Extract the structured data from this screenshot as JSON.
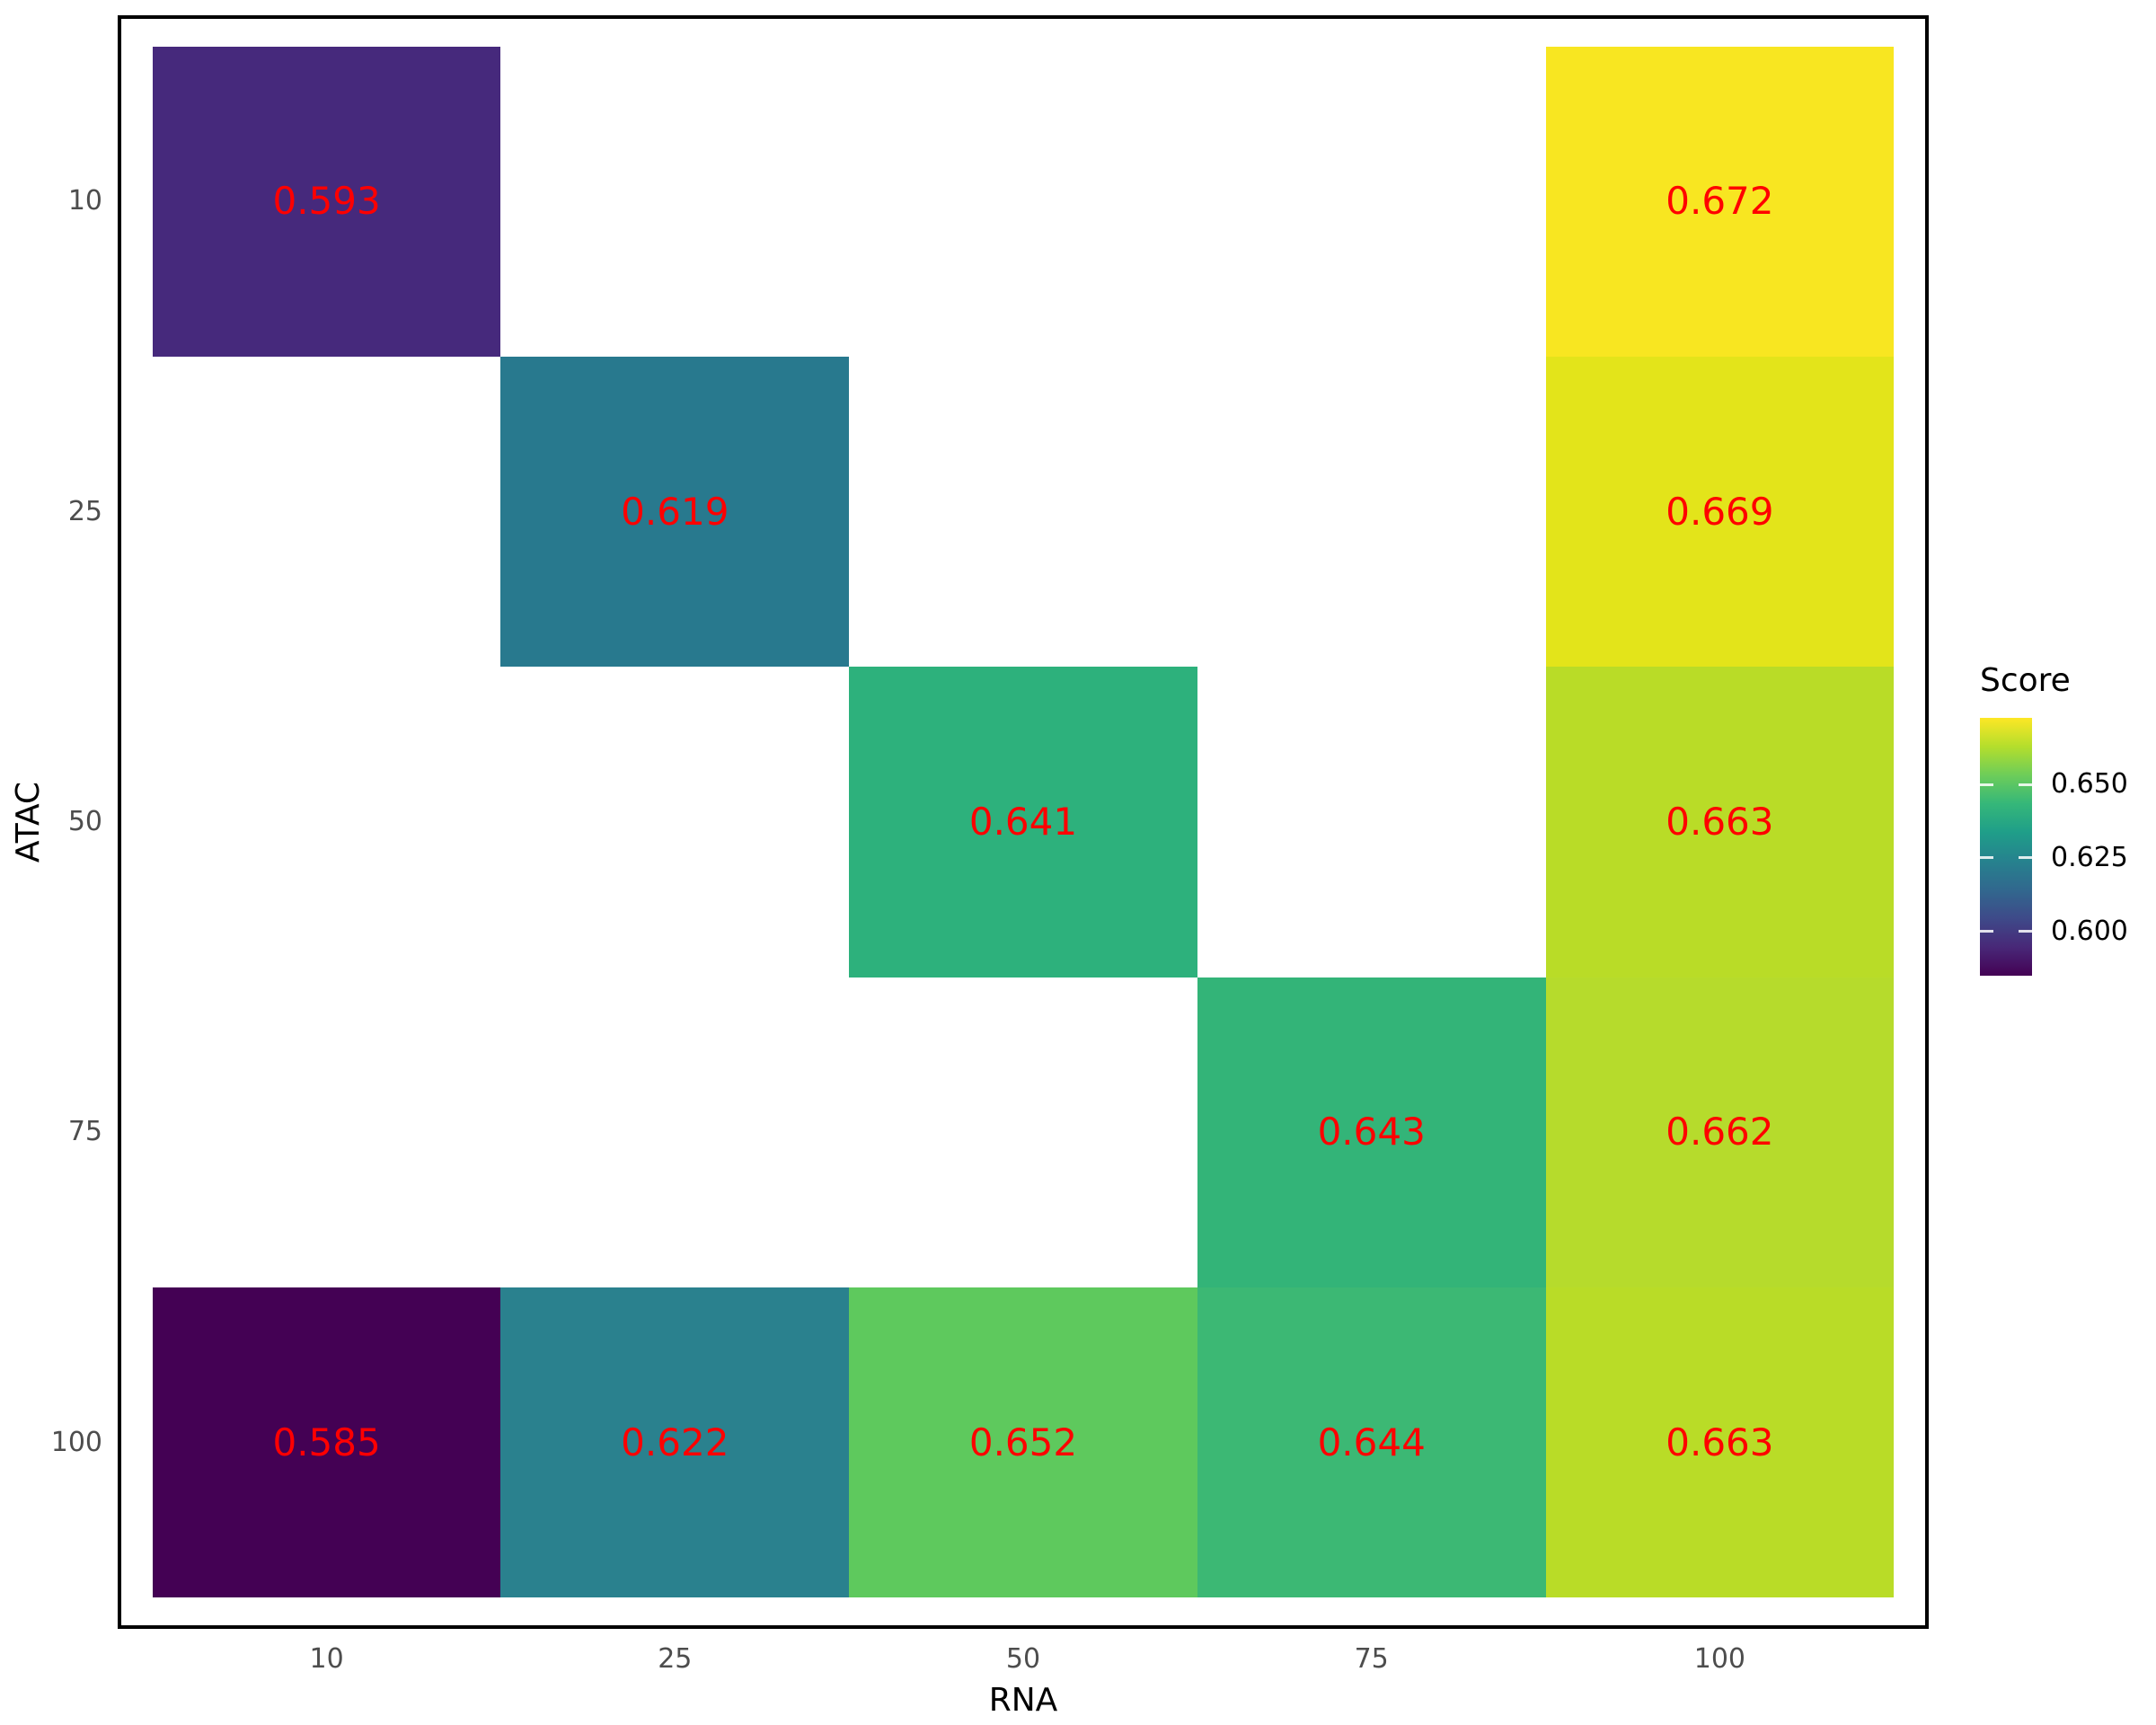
{
  "chart_data": {
    "type": "heatmap",
    "xlabel": "RNA",
    "ylabel": "ATAC",
    "x_categories": [
      "10",
      "25",
      "50",
      "75",
      "100"
    ],
    "y_categories": [
      "10",
      "25",
      "50",
      "75",
      "100"
    ],
    "value_label_color": "#FF0000",
    "axis_tick_color": "#4D4D4D",
    "axis_title_color": "#000000",
    "panel_border_color": "#000000",
    "background_color": "#FFFFFF",
    "cells": [
      {
        "x": "10",
        "y": "10",
        "value": 0.593,
        "label": "0.593",
        "color": "#46297C"
      },
      {
        "x": "100",
        "y": "10",
        "value": 0.672,
        "label": "0.672",
        "color": "#F8E621"
      },
      {
        "x": "25",
        "y": "25",
        "value": 0.619,
        "label": "0.619",
        "color": "#28798E"
      },
      {
        "x": "100",
        "y": "25",
        "value": 0.669,
        "label": "0.669",
        "color": "#E3E41A"
      },
      {
        "x": "50",
        "y": "50",
        "value": 0.641,
        "label": "0.641",
        "color": "#2DB17C"
      },
      {
        "x": "100",
        "y": "50",
        "value": 0.663,
        "label": "0.663",
        "color": "#B9DC27"
      },
      {
        "x": "75",
        "y": "75",
        "value": 0.643,
        "label": "0.643",
        "color": "#33B478"
      },
      {
        "x": "100",
        "y": "75",
        "value": 0.662,
        "label": "0.662",
        "color": "#B6DB2C"
      },
      {
        "x": "10",
        "y": "100",
        "value": 0.585,
        "label": "0.585",
        "color": "#440154"
      },
      {
        "x": "25",
        "y": "100",
        "value": 0.622,
        "label": "0.622",
        "color": "#2A818E"
      },
      {
        "x": "50",
        "y": "100",
        "value": 0.652,
        "label": "0.652",
        "color": "#5EC95D"
      },
      {
        "x": "75",
        "y": "100",
        "value": 0.644,
        "label": "0.644",
        "color": "#3CB874"
      },
      {
        "x": "100",
        "y": "100",
        "value": 0.663,
        "label": "0.663",
        "color": "#B9DC27"
      }
    ],
    "legend": {
      "title": "Score",
      "range": [
        0.585,
        0.673
      ],
      "ticks": [
        {
          "label": "0.650",
          "pos_from_top": 0.259
        },
        {
          "label": "0.625",
          "pos_from_top": 0.542
        },
        {
          "label": "0.600",
          "pos_from_top": 0.829
        }
      ],
      "gradient_bottom_to_top": [
        "#440154",
        "#482878",
        "#3E4A89",
        "#31688E",
        "#26828E",
        "#1F9E89",
        "#35B779",
        "#6DCD59",
        "#B4DE2C",
        "#FDE725"
      ],
      "text_color": "#000000"
    }
  }
}
